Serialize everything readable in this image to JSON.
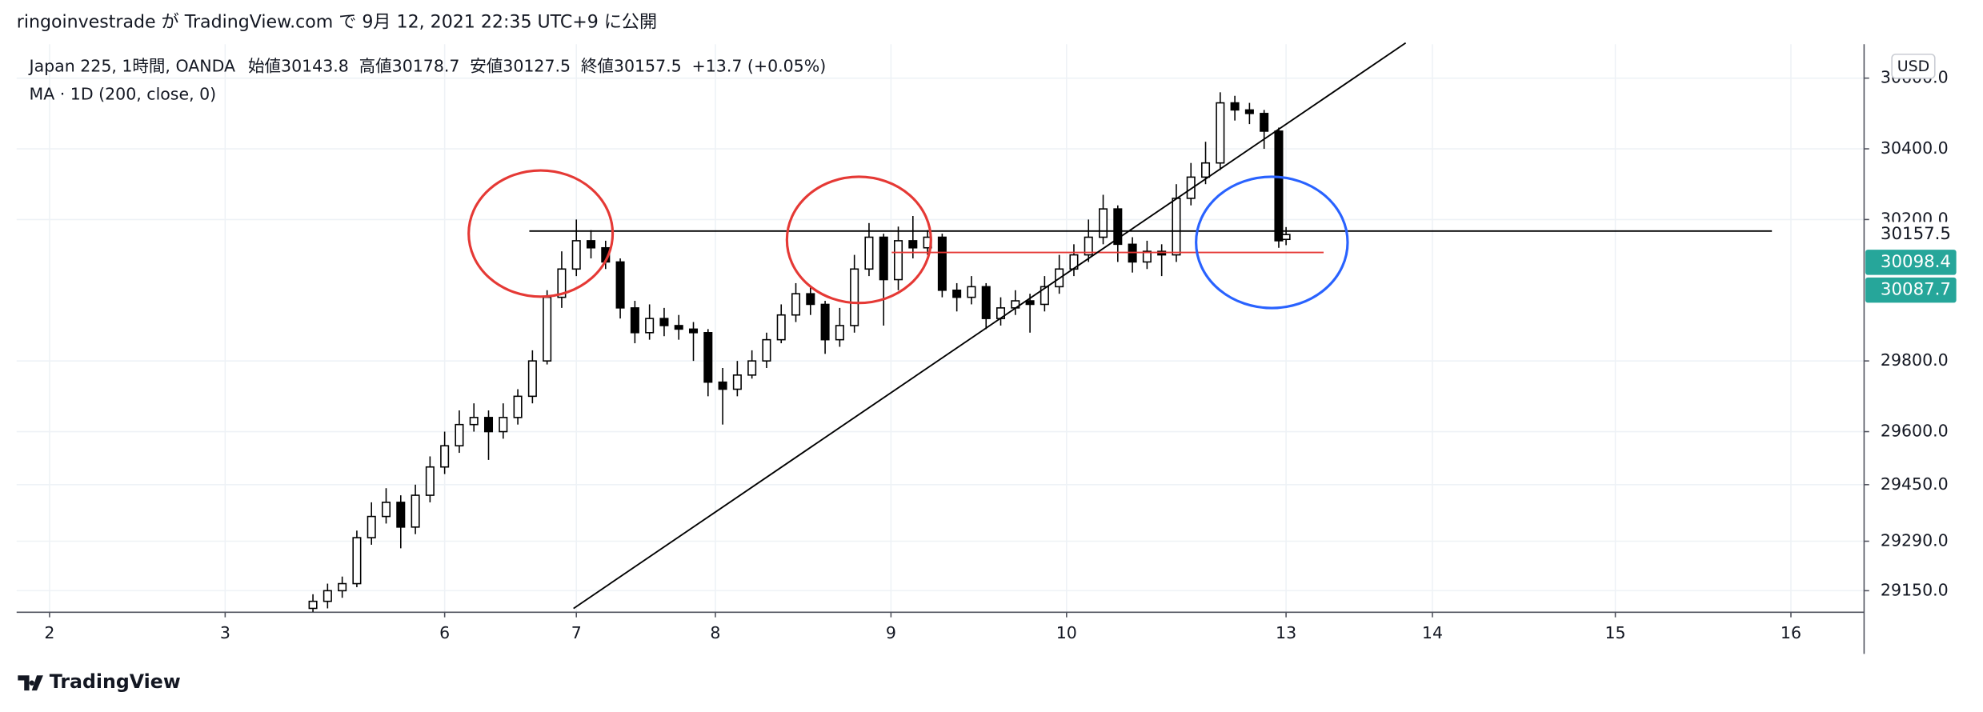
{
  "header": {
    "title": "ringoinvestrade が TradingView.com で 9月 12, 2021 22:35 UTC+9 に公開"
  },
  "chart_data": {
    "type": "candlestick",
    "symbol": "Japan 225, 1時間, OANDA",
    "ohlc_labels": {
      "open": "始値",
      "high": "高値",
      "low": "安値",
      "close": "終値"
    },
    "ohlc": {
      "open": 30143.8,
      "high": 30178.7,
      "low": 30127.5,
      "close": 30157.5
    },
    "change": "+13.7 (+0.05%)",
    "indicator": "MA · 1D (200, close, 0)",
    "currency": "USD",
    "up_color": "#ffffff",
    "down_color": "#000000",
    "x": [
      36,
      38,
      40,
      42,
      44,
      46,
      48,
      50,
      52,
      54,
      56,
      58,
      60,
      62,
      64,
      66,
      68,
      70,
      72,
      74,
      76,
      78,
      80,
      82,
      84,
      86,
      88,
      90,
      92,
      94,
      96,
      98,
      100,
      102,
      104,
      106,
      108,
      110,
      112,
      114,
      116,
      118,
      120,
      122,
      124,
      126,
      128,
      130,
      132,
      134,
      136,
      138,
      140,
      142,
      144,
      146,
      148,
      150,
      152,
      154,
      156,
      158,
      160,
      162,
      164,
      166,
      168,
      169
    ],
    "open": [
      29100,
      29120,
      29150,
      29170,
      29300,
      29360,
      29400,
      29330,
      29420,
      29500,
      29560,
      29620,
      29640,
      29600,
      29640,
      29700,
      29800,
      29980,
      30060,
      30140,
      30120,
      30080,
      29950,
      29880,
      29920,
      29900,
      29890,
      29880,
      29740,
      29720,
      29760,
      29800,
      29860,
      29930,
      29990,
      29960,
      29860,
      29900,
      30060,
      30150,
      30030,
      30140,
      30120,
      30150,
      30000,
      29980,
      30010,
      29920,
      29950,
      29970,
      29960,
      30010,
      30060,
      30100,
      30150,
      30230,
      30130,
      30080,
      30110,
      30100,
      30260,
      30320,
      30360,
      30530,
      30510,
      30500,
      30450,
      30143.8
    ],
    "high": [
      29140,
      29170,
      29190,
      29320,
      29400,
      29440,
      29420,
      29450,
      29530,
      29600,
      29660,
      29680,
      29660,
      29680,
      29720,
      29830,
      30000,
      30110,
      30200,
      30170,
      30140,
      30090,
      29970,
      29960,
      29950,
      29930,
      29910,
      29890,
      29780,
      29800,
      29830,
      29880,
      29960,
      30020,
      30010,
      29970,
      29950,
      30100,
      30190,
      30160,
      30180,
      30210,
      30170,
      30160,
      30020,
      30040,
      30020,
      29980,
      30000,
      29990,
      30040,
      30100,
      30130,
      30200,
      30270,
      30240,
      30150,
      30140,
      30130,
      30300,
      30360,
      30420,
      30560,
      30550,
      30530,
      30510,
      30460,
      30178.7
    ],
    "low": [
      29090,
      29100,
      29130,
      29160,
      29280,
      29340,
      29270,
      29310,
      29400,
      29480,
      29540,
      29600,
      29520,
      29580,
      29620,
      29680,
      29790,
      29950,
      30040,
      30090,
      30060,
      29920,
      29850,
      29860,
      29870,
      29860,
      29800,
      29700,
      29620,
      29700,
      29750,
      29780,
      29850,
      29910,
      29930,
      29820,
      29840,
      29880,
      30040,
      29900,
      30000,
      30090,
      30100,
      29980,
      29940,
      29960,
      29890,
      29900,
      29930,
      29880,
      29940,
      29990,
      30040,
      30080,
      30130,
      30080,
      30050,
      30060,
      30040,
      30080,
      30240,
      30300,
      30340,
      30480,
      30470,
      30400,
      30120,
      30127.5
    ],
    "close": [
      29120,
      29150,
      29170,
      29300,
      29360,
      29400,
      29330,
      29420,
      29500,
      29560,
      29620,
      29640,
      29600,
      29640,
      29700,
      29800,
      29980,
      30060,
      30140,
      30120,
      30080,
      29950,
      29880,
      29920,
      29900,
      29890,
      29880,
      29740,
      29720,
      29760,
      29800,
      29860,
      29930,
      29990,
      29960,
      29860,
      29900,
      30060,
      30150,
      30030,
      30140,
      30120,
      30150,
      30000,
      29980,
      30010,
      29920,
      29950,
      29970,
      29960,
      30010,
      30060,
      30100,
      30150,
      30230,
      30130,
      30080,
      30110,
      30100,
      30260,
      30320,
      30360,
      30530,
      30510,
      30500,
      30450,
      30140,
      30157.5
    ],
    "xlim": [
      -4.5,
      248
    ],
    "xticks": [
      {
        "value": 0,
        "label": "2"
      },
      {
        "value": 24,
        "label": "3"
      },
      {
        "value": 54,
        "label": "6"
      },
      {
        "value": 72,
        "label": "7"
      },
      {
        "value": 91,
        "label": "8"
      },
      {
        "value": 115,
        "label": "9"
      },
      {
        "value": 139,
        "label": "10"
      },
      {
        "value": 169,
        "label": "13"
      },
      {
        "value": 189,
        "label": "14"
      },
      {
        "value": 214,
        "label": "15"
      },
      {
        "value": 238,
        "label": "16"
      }
    ],
    "ylim": [
      29089,
      30696
    ],
    "yticks": [
      {
        "value": 30600,
        "label": "30600.0"
      },
      {
        "value": 30400,
        "label": "30400.0"
      },
      {
        "value": 30200,
        "label": "30200.0"
      },
      {
        "value": 29800,
        "label": "29800.0"
      },
      {
        "value": 29600,
        "label": "29600.0"
      },
      {
        "value": 29450,
        "label": "29450.0"
      },
      {
        "value": 29290,
        "label": "29290.0"
      },
      {
        "value": 29150,
        "label": "29150.0"
      }
    ],
    "price_labels": [
      30157.5,
      30098.4,
      30087.7
    ],
    "price_label_colors": [
      "#ffffff",
      "#26a69a",
      "#26a69a"
    ],
    "grid": true
  },
  "footer": {
    "brand": "TradingView"
  }
}
